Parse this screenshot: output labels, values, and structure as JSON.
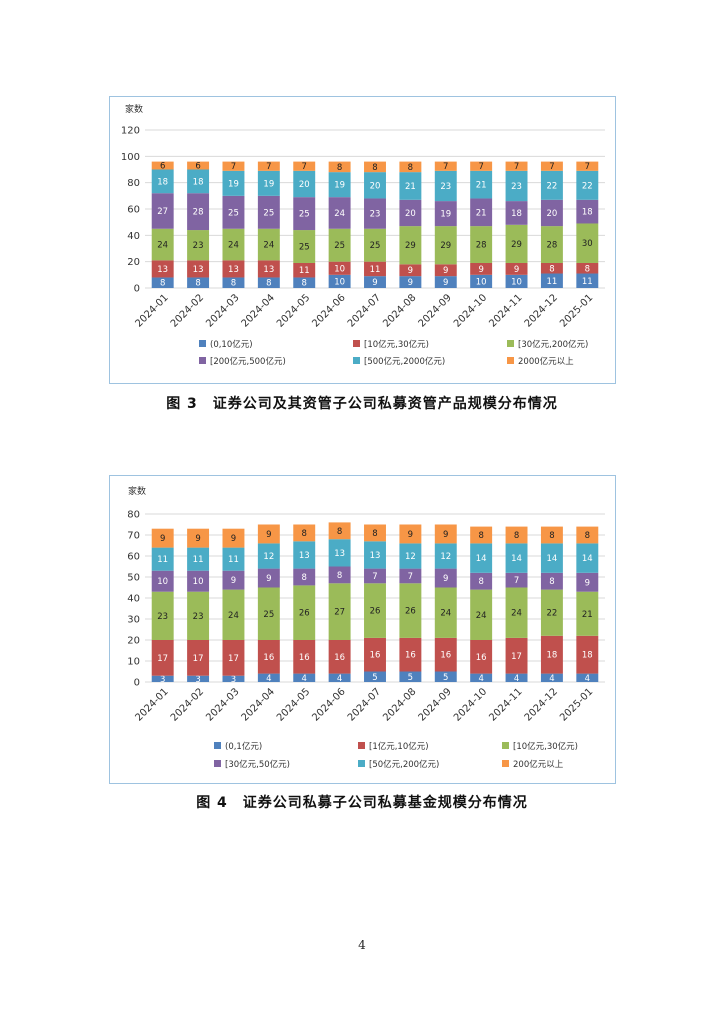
{
  "colors": [
    "#4f81bd",
    "#c0504d",
    "#9bbb59",
    "#8064a2",
    "#4bacc6",
    "#f79646"
  ],
  "charts": [
    {
      "caption": "图 3　证券公司及其资管子公司私募资管产品规模分布情况",
      "chart_data": {
        "type": "bar",
        "stacked": true,
        "ylabel": "家数",
        "ylim": [
          0,
          120
        ],
        "yticks": [
          0,
          20,
          40,
          60,
          80,
          100,
          120
        ],
        "grid": true,
        "legend_position": "bottom",
        "categories": [
          "2024-01",
          "2024-02",
          "2024-03",
          "2024-04",
          "2024-05",
          "2024-06",
          "2024-07",
          "2024-08",
          "2024-09",
          "2024-10",
          "2024-11",
          "2024-12",
          "2025-01"
        ],
        "series": [
          {
            "name": "(0,10亿元)",
            "values": [
              8,
              8,
              8,
              8,
              8,
              10,
              9,
              9,
              9,
              10,
              10,
              11,
              11
            ]
          },
          {
            "name": "[10亿元,30亿元)",
            "values": [
              13,
              13,
              13,
              13,
              11,
              10,
              11,
              9,
              9,
              9,
              9,
              8,
              8
            ]
          },
          {
            "name": "[30亿元,200亿元)",
            "values": [
              24,
              23,
              24,
              24,
              25,
              25,
              25,
              29,
              29,
              28,
              29,
              28,
              30
            ]
          },
          {
            "name": "[200亿元,500亿元)",
            "values": [
              27,
              28,
              25,
              25,
              25,
              24,
              23,
              20,
              19,
              21,
              18,
              20,
              18
            ]
          },
          {
            "name": "[500亿元,2000亿元)",
            "values": [
              18,
              18,
              19,
              19,
              20,
              19,
              20,
              21,
              23,
              21,
              23,
              22,
              22
            ]
          },
          {
            "name": "2000亿元以上",
            "values": [
              6,
              6,
              7,
              7,
              7,
              8,
              8,
              8,
              7,
              7,
              7,
              7,
              7
            ]
          }
        ]
      }
    },
    {
      "caption": "图 4　证券公司私募子公司私募基金规模分布情况",
      "chart_data": {
        "type": "bar",
        "stacked": true,
        "ylabel": "家数",
        "ylim": [
          0,
          80
        ],
        "yticks": [
          0,
          10,
          20,
          30,
          40,
          50,
          60,
          70,
          80
        ],
        "grid": true,
        "legend_position": "bottom",
        "categories": [
          "2024-01",
          "2024-02",
          "2024-03",
          "2024-04",
          "2024-05",
          "2024-06",
          "2024-07",
          "2024-08",
          "2024-09",
          "2024-10",
          "2024-11",
          "2024-12",
          "2025-01"
        ],
        "series": [
          {
            "name": "(0,1亿元)",
            "values": [
              3,
              3,
              3,
              4,
              4,
              4,
              5,
              5,
              5,
              4,
              4,
              4,
              4
            ]
          },
          {
            "name": "[1亿元,10亿元)",
            "values": [
              17,
              17,
              17,
              16,
              16,
              16,
              16,
              16,
              16,
              16,
              17,
              18,
              18
            ]
          },
          {
            "name": "[10亿元,30亿元)",
            "values": [
              23,
              23,
              24,
              25,
              26,
              27,
              26,
              26,
              24,
              24,
              24,
              22,
              21
            ]
          },
          {
            "name": "[30亿元,50亿元)",
            "values": [
              10,
              10,
              9,
              9,
              8,
              8,
              7,
              7,
              9,
              8,
              7,
              8,
              9
            ]
          },
          {
            "name": "[50亿元,200亿元)",
            "values": [
              11,
              11,
              11,
              12,
              13,
              13,
              13,
              12,
              12,
              14,
              14,
              14,
              14
            ]
          },
          {
            "name": "200亿元以上",
            "values": [
              9,
              9,
              9,
              9,
              8,
              8,
              8,
              9,
              9,
              8,
              8,
              8,
              8
            ]
          }
        ]
      }
    }
  ],
  "page_number": "4"
}
